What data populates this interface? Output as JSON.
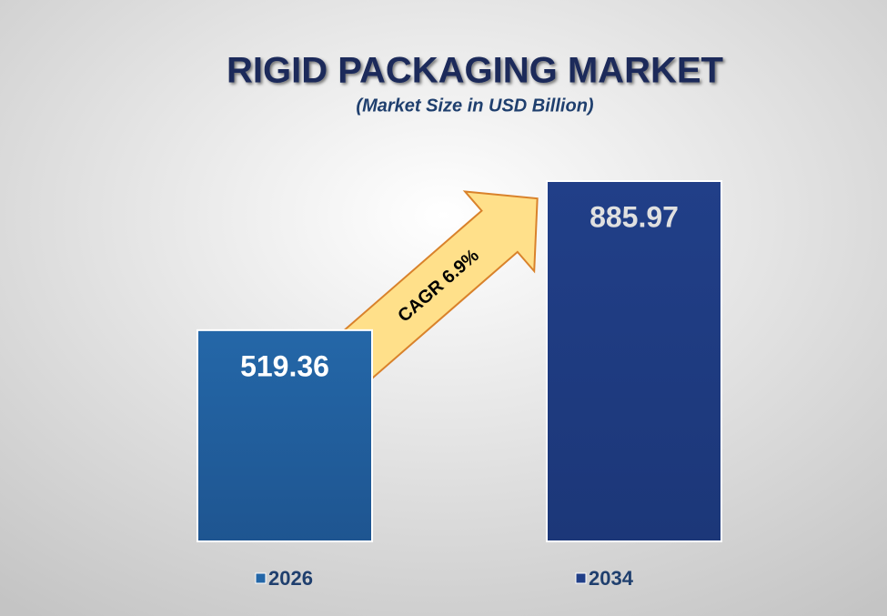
{
  "chart_data": {
    "type": "bar",
    "title": "RIGID PACKAGING MARKET",
    "subtitle": "(Market Size in USD Billion)",
    "annotation": "CAGR 6.9%",
    "series": [
      {
        "name": "2026",
        "color": "#2467a8",
        "values": [
          519.36
        ]
      },
      {
        "name": "2034",
        "color": "#213f88",
        "values": [
          885.97
        ]
      }
    ]
  }
}
